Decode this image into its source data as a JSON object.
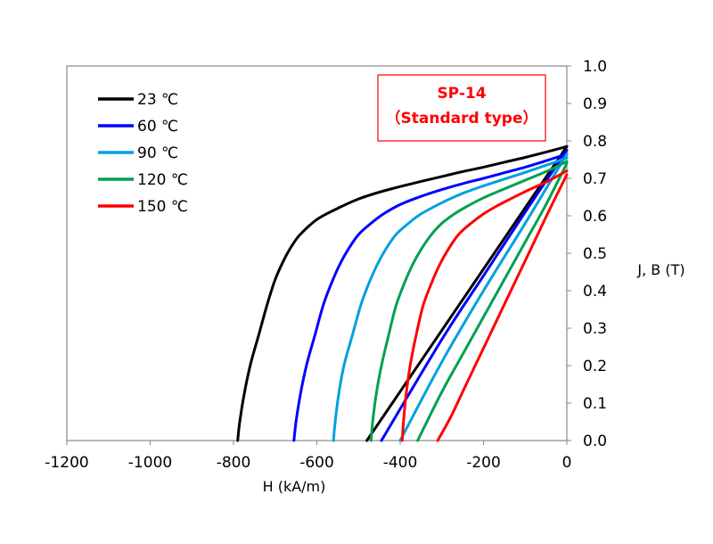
{
  "chart_data": {
    "type": "line",
    "title": "SP-14",
    "subtitle": "（Standard type）",
    "xlabel": "H (kA/m)",
    "ylabel": "J, B (T)",
    "xlim": [
      -1200,
      0
    ],
    "ylim": [
      0.0,
      1.0
    ],
    "x_ticks": [
      "-1200",
      "-1000",
      "-800",
      "-600",
      "-400",
      "-200",
      "0"
    ],
    "y_ticks": [
      "0.0",
      "0.1",
      "0.2",
      "0.3",
      "0.4",
      "0.5",
      "0.6",
      "0.7",
      "0.8",
      "0.9",
      "1.0"
    ],
    "grid": false,
    "legend_position": "top-left",
    "series": [
      {
        "name": "23 ℃",
        "color": "#000000",
        "J": {
          "x": [
            -790,
            -785,
            -775,
            -760,
            -740,
            -720,
            -700,
            -680,
            -660,
            -640,
            -600,
            -550,
            -500,
            -450,
            -400,
            -350,
            -300,
            -250,
            -200,
            -150,
            -100,
            -50,
            0
          ],
          "y": [
            0.0,
            0.05,
            0.12,
            0.2,
            0.28,
            0.36,
            0.43,
            0.48,
            0.52,
            0.55,
            0.59,
            0.62,
            0.645,
            0.663,
            0.678,
            0.692,
            0.705,
            0.718,
            0.73,
            0.743,
            0.756,
            0.77,
            0.785
          ]
        },
        "B": {
          "x": [
            -480,
            0
          ],
          "y": [
            0.0,
            0.785
          ]
        }
      },
      {
        "name": "60 ℃",
        "color": "#0000ff",
        "J": {
          "x": [
            -655,
            -650,
            -640,
            -625,
            -605,
            -585,
            -565,
            -545,
            -525,
            -500,
            -470,
            -440,
            -400,
            -350,
            -300,
            -250,
            -200,
            -150,
            -100,
            -50,
            0
          ],
          "y": [
            0.0,
            0.05,
            0.12,
            0.2,
            0.28,
            0.36,
            0.42,
            0.47,
            0.51,
            0.55,
            0.58,
            0.605,
            0.63,
            0.652,
            0.67,
            0.686,
            0.7,
            0.715,
            0.73,
            0.747,
            0.765
          ]
        },
        "B": {
          "x": [
            -445,
            -300,
            -200,
            -100,
            0
          ],
          "y": [
            0.0,
            0.27,
            0.44,
            0.61,
            0.775
          ]
        }
      },
      {
        "name": "90 ℃",
        "color": "#00a0e0",
        "J": {
          "x": [
            -560,
            -556,
            -548,
            -535,
            -515,
            -495,
            -475,
            -455,
            -435,
            -410,
            -380,
            -350,
            -300,
            -250,
            -200,
            -150,
            -100,
            -50,
            0
          ],
          "y": [
            0.0,
            0.05,
            0.12,
            0.2,
            0.28,
            0.36,
            0.42,
            0.47,
            0.51,
            0.55,
            0.58,
            0.605,
            0.635,
            0.66,
            0.68,
            0.698,
            0.716,
            0.735,
            0.755
          ]
        },
        "B": {
          "x": [
            -400,
            -300,
            -200,
            -100,
            0
          ],
          "y": [
            0.0,
            0.21,
            0.4,
            0.58,
            0.765
          ]
        }
      },
      {
        "name": "120 ℃",
        "color": "#00a050",
        "J": {
          "x": [
            -470,
            -466,
            -458,
            -445,
            -428,
            -410,
            -390,
            -370,
            -350,
            -325,
            -300,
            -270,
            -240,
            -200,
            -150,
            -100,
            -50,
            0
          ],
          "y": [
            0.0,
            0.05,
            0.12,
            0.2,
            0.28,
            0.36,
            0.42,
            0.47,
            0.51,
            0.55,
            0.58,
            0.605,
            0.625,
            0.648,
            0.672,
            0.695,
            0.718,
            0.745
          ]
        },
        "B": {
          "x": [
            -358,
            -300,
            -250,
            -200,
            -150,
            -100,
            -50,
            0
          ],
          "y": [
            0.0,
            0.13,
            0.23,
            0.33,
            0.43,
            0.53,
            0.63,
            0.74
          ]
        }
      },
      {
        "name": "150 ℃",
        "color": "#ff0000",
        "J": {
          "x": [
            -395,
            -392,
            -386,
            -376,
            -362,
            -345,
            -325,
            -305,
            -285,
            -260,
            -230,
            -200,
            -170,
            -130,
            -90,
            -50,
            0
          ],
          "y": [
            0.0,
            0.05,
            0.12,
            0.2,
            0.28,
            0.36,
            0.42,
            0.47,
            0.51,
            0.55,
            0.58,
            0.605,
            0.625,
            0.648,
            0.67,
            0.69,
            0.72
          ]
        },
        "B": {
          "x": [
            -310,
            -280,
            -250,
            -220,
            -190,
            -160,
            -130,
            -100,
            -70,
            -40,
            0
          ],
          "y": [
            0.0,
            0.06,
            0.13,
            0.2,
            0.27,
            0.34,
            0.41,
            0.48,
            0.55,
            0.62,
            0.71
          ]
        }
      }
    ]
  }
}
